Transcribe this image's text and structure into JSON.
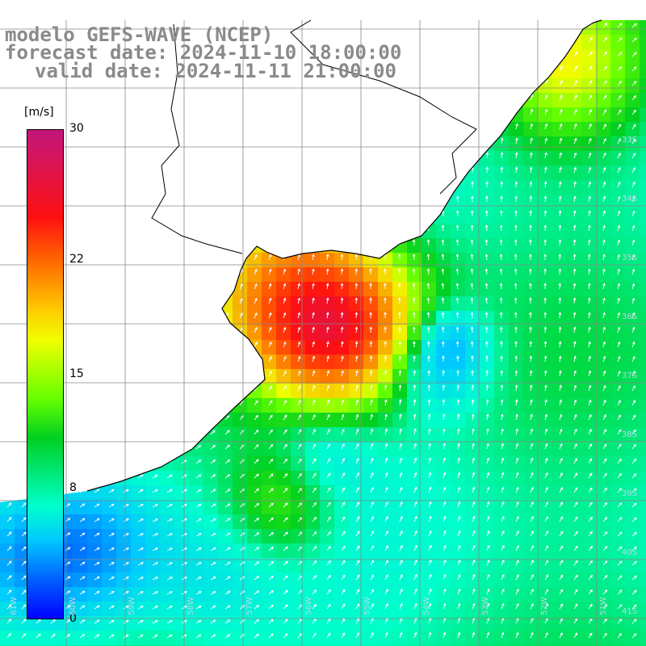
{
  "title": {
    "line1": "modelo GEFS-WAVE (NCEP)",
    "line2": "forecast date: 2024-11-10 18:00:00",
    "line3": "valid date: 2024-11-11 21:00:00"
  },
  "colorbar": {
    "units": "[m/s]",
    "ticks": [
      {
        "label": "30",
        "value": 30
      },
      {
        "label": "22",
        "value": 22
      },
      {
        "label": "15",
        "value": 15
      },
      {
        "label": "8",
        "value": 8
      },
      {
        "label": "0",
        "value": 0
      }
    ],
    "colors": [
      "#0000ff",
      "#00c8ff",
      "#00ffcc",
      "#00d020",
      "#66ff00",
      "#f0ff00",
      "#ff6a00",
      "#ff1010",
      "#c2167c"
    ]
  },
  "map": {
    "grid_color": "#888888",
    "coast_color": "#000000",
    "arrow_color": "#ffffff",
    "land_color": "#ffffff",
    "lat_labels": [
      "33S",
      "34S",
      "35S",
      "36S",
      "37S",
      "38S",
      "39S",
      "40S",
      "41S"
    ],
    "lon_labels": [
      "61W",
      "60W",
      "59W",
      "58W",
      "57W",
      "56W",
      "55W",
      "54W",
      "53W",
      "52W",
      "51W"
    ]
  }
}
